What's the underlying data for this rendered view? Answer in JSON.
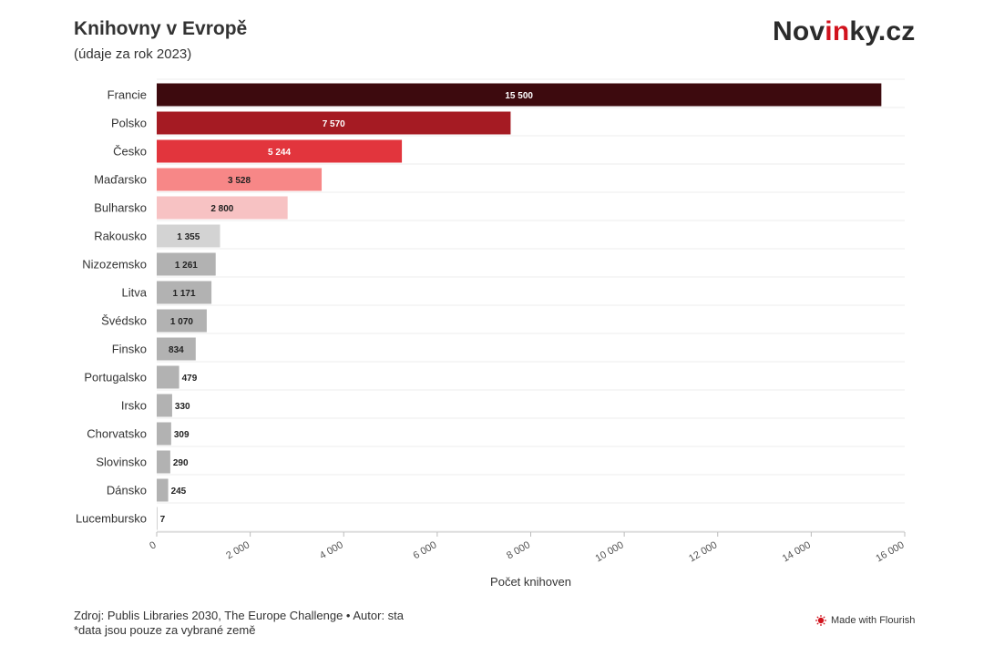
{
  "header": {
    "title": "Knihovny v Evropě",
    "subtitle": "(údaje za rok 2023)",
    "brand_prefix": "Nov",
    "brand_accent": "in",
    "brand_suffix": "ky.cz"
  },
  "footer": {
    "source": "Zdroj: Publis Libraries 2030, The Europe Challenge • Autor: sta",
    "note": "*data jsou pouze za vybrané země",
    "flourish_label": "Made with Flourish"
  },
  "chart_data": {
    "type": "bar",
    "orientation": "horizontal",
    "categories": [
      "Francie",
      "Polsko",
      "Česko",
      "Maďarsko",
      "Bulharsko",
      "Rakousko",
      "Nizozemsko",
      "Litva",
      "Švédsko",
      "Finsko",
      "Portugalsko",
      "Irsko",
      "Chorvatsko",
      "Slovinsko",
      "Dánsko",
      "Lucembursko"
    ],
    "values": [
      15500,
      7570,
      5244,
      3528,
      2800,
      1355,
      1261,
      1171,
      1070,
      834,
      479,
      330,
      309,
      290,
      245,
      7
    ],
    "value_labels": [
      "15 500",
      "7 570",
      "5 244",
      "3 528",
      "2 800",
      "1 355",
      "1 261",
      "1 171",
      "1 070",
      "834",
      "479",
      "330",
      "309",
      "290",
      "245",
      "7"
    ],
    "colors": [
      "#3d0a0e",
      "#a51b23",
      "#e2353d",
      "#f78787",
      "#f7c2c3",
      "#d3d3d3",
      "#b2b2b2",
      "#b2b2b2",
      "#b2b2b2",
      "#b2b2b2",
      "#b2b2b2",
      "#b2b2b2",
      "#b2b2b2",
      "#b2b2b2",
      "#b2b2b2",
      "#b2b2b2"
    ],
    "label_colors": [
      "#ffffff",
      "#ffffff",
      "#ffffff",
      "#222222",
      "#222222",
      "#222222",
      "#222222",
      "#222222",
      "#222222",
      "#222222",
      "#222222",
      "#222222",
      "#222222",
      "#222222",
      "#222222",
      "#222222"
    ],
    "xlabel": "Počet knihoven",
    "xlim": [
      0,
      16000
    ],
    "xticks": [
      0,
      2000,
      4000,
      6000,
      8000,
      10000,
      12000,
      14000,
      16000
    ],
    "xtick_labels": [
      "0",
      "2 000",
      "4 000",
      "6 000",
      "8 000",
      "10 000",
      "12 000",
      "14 000",
      "16 000"
    ],
    "grid": true,
    "legend": "none"
  }
}
